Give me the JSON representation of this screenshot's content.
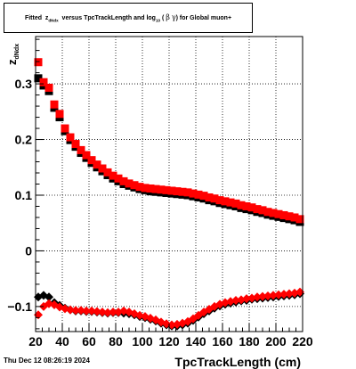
{
  "title": {
    "prefix": "Fitted",
    "var": "z",
    "var_sub": "dNdx",
    "middle": "versus TpcTrackLength and log",
    "log_sub": "10",
    "paren_open": "(",
    "beta": "β",
    "gamma": "γ",
    "paren_close": ")",
    "suffix": "for Global muon+"
  },
  "timestamp": "Thu Dec 12 08:26:19 2024",
  "colors": {
    "black_series": "#000000",
    "red_series": "#ff0000",
    "grid": "#000000"
  },
  "chart_data": {
    "type": "scatter",
    "xlabel": "TpcTrackLength (cm)",
    "ylabel": "z",
    "ylabel_sub": "dNdx",
    "xlim": [
      20,
      220
    ],
    "ylim": [
      -0.145,
      0.385
    ],
    "x_ticks": [
      20,
      40,
      60,
      80,
      100,
      120,
      140,
      160,
      180,
      200,
      220
    ],
    "y_ticks": [
      -0.1,
      0,
      0.1,
      0.2,
      0.3
    ],
    "y_tick_labels": [
      "−0.1",
      "0",
      "0.1",
      "0.2",
      "0.3"
    ],
    "grid": true,
    "series": [
      {
        "marker": "square",
        "color": "#000000",
        "x": [
          22,
          26,
          30,
          34,
          38,
          42,
          46,
          50,
          54,
          58,
          62,
          66,
          70,
          74,
          78,
          82,
          86,
          90,
          94,
          98,
          102,
          106,
          110,
          114,
          118,
          122,
          126,
          130,
          134,
          138,
          142,
          146,
          150,
          154,
          158,
          162,
          166,
          170,
          174,
          178,
          182,
          186,
          190,
          194,
          198,
          202,
          206,
          210,
          214,
          218
        ],
        "y": [
          0.31,
          0.297,
          0.287,
          0.257,
          0.24,
          0.215,
          0.199,
          0.187,
          0.176,
          0.167,
          0.158,
          0.15,
          0.143,
          0.136,
          0.13,
          0.125,
          0.12,
          0.117,
          0.114,
          0.111,
          0.109,
          0.107,
          0.106,
          0.105,
          0.104,
          0.103,
          0.102,
          0.101,
          0.1,
          0.098,
          0.096,
          0.094,
          0.091,
          0.089,
          0.086,
          0.084,
          0.082,
          0.08,
          0.077,
          0.075,
          0.073,
          0.07,
          0.068,
          0.065,
          0.063,
          0.061,
          0.059,
          0.057,
          0.055,
          0.052
        ]
      },
      {
        "marker": "square",
        "color": "#ff0000",
        "x": [
          22,
          26,
          30,
          34,
          38,
          42,
          46,
          50,
          54,
          58,
          62,
          66,
          70,
          74,
          78,
          82,
          86,
          90,
          94,
          98,
          102,
          106,
          110,
          114,
          118,
          122,
          126,
          130,
          134,
          138,
          142,
          146,
          150,
          154,
          158,
          162,
          166,
          170,
          174,
          178,
          182,
          186,
          190,
          194,
          198,
          202,
          206,
          210,
          214,
          218
        ],
        "y": [
          0.339,
          0.303,
          0.293,
          0.263,
          0.246,
          0.22,
          0.204,
          0.192,
          0.181,
          0.172,
          0.163,
          0.155,
          0.148,
          0.141,
          0.135,
          0.13,
          0.125,
          0.121,
          0.118,
          0.115,
          0.113,
          0.112,
          0.111,
          0.11,
          0.109,
          0.108,
          0.107,
          0.106,
          0.105,
          0.103,
          0.101,
          0.099,
          0.096,
          0.094,
          0.091,
          0.089,
          0.087,
          0.085,
          0.082,
          0.08,
          0.078,
          0.075,
          0.073,
          0.07,
          0.068,
          0.066,
          0.064,
          0.062,
          0.06,
          0.057
        ]
      },
      {
        "marker": "diamond",
        "color": "#000000",
        "x": [
          22,
          26,
          30,
          34,
          38,
          42,
          46,
          50,
          54,
          58,
          62,
          66,
          70,
          74,
          78,
          82,
          86,
          90,
          94,
          98,
          102,
          106,
          110,
          114,
          118,
          122,
          126,
          130,
          134,
          138,
          142,
          146,
          150,
          154,
          158,
          162,
          166,
          170,
          174,
          178,
          182,
          186,
          190,
          194,
          198,
          202,
          206,
          210,
          214,
          218
        ],
        "y": [
          -0.083,
          -0.08,
          -0.083,
          -0.093,
          -0.098,
          -0.103,
          -0.106,
          -0.108,
          -0.108,
          -0.109,
          -0.109,
          -0.11,
          -0.111,
          -0.112,
          -0.111,
          -0.111,
          -0.112,
          -0.113,
          -0.115,
          -0.118,
          -0.12,
          -0.123,
          -0.126,
          -0.13,
          -0.133,
          -0.135,
          -0.135,
          -0.133,
          -0.13,
          -0.125,
          -0.119,
          -0.113,
          -0.108,
          -0.103,
          -0.099,
          -0.096,
          -0.094,
          -0.092,
          -0.09,
          -0.089,
          -0.087,
          -0.086,
          -0.085,
          -0.084,
          -0.083,
          -0.082,
          -0.081,
          -0.08,
          -0.079,
          -0.077
        ]
      },
      {
        "marker": "diamond",
        "color": "#ff0000",
        "x": [
          22,
          26,
          30,
          34,
          38,
          42,
          46,
          50,
          54,
          58,
          62,
          66,
          70,
          74,
          78,
          82,
          86,
          90,
          94,
          98,
          102,
          106,
          110,
          114,
          118,
          122,
          126,
          130,
          134,
          138,
          142,
          146,
          150,
          154,
          158,
          162,
          166,
          170,
          174,
          178,
          182,
          186,
          190,
          194,
          198,
          202,
          206,
          210,
          214,
          218
        ],
        "y": [
          -0.115,
          -0.1,
          -0.095,
          -0.097,
          -0.101,
          -0.104,
          -0.106,
          -0.107,
          -0.107,
          -0.108,
          -0.108,
          -0.109,
          -0.11,
          -0.111,
          -0.11,
          -0.11,
          -0.108,
          -0.11,
          -0.113,
          -0.116,
          -0.118,
          -0.121,
          -0.124,
          -0.128,
          -0.131,
          -0.133,
          -0.132,
          -0.13,
          -0.127,
          -0.122,
          -0.116,
          -0.11,
          -0.105,
          -0.1,
          -0.096,
          -0.093,
          -0.091,
          -0.089,
          -0.088,
          -0.086,
          -0.085,
          -0.083,
          -0.082,
          -0.081,
          -0.08,
          -0.079,
          -0.078,
          -0.077,
          -0.076,
          -0.074
        ]
      }
    ]
  }
}
